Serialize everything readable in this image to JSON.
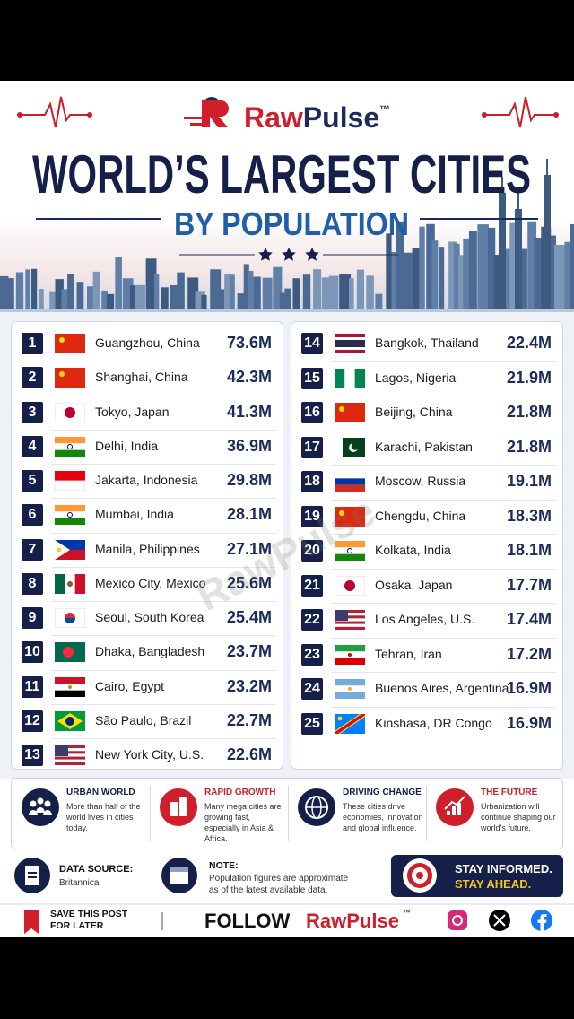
{
  "header": {
    "brand_first": "Raw",
    "brand_second": "Pulse",
    "trademark": "™",
    "title": "WORLD’S LARGEST CITIES",
    "subtitle": "BY POPULATION"
  },
  "watermark": "RawPulse",
  "table": {
    "rows": [
      [
        1,
        "Guangzhou, China",
        "73.6M"
      ],
      [
        2,
        "Shanghai, China",
        "42.3M"
      ],
      [
        3,
        "Tokyo, Japan",
        "41.3M"
      ],
      [
        4,
        "Delhi, India",
        "36.9M"
      ],
      [
        5,
        "Jakarta, Indonesia",
        "29.8M"
      ],
      [
        6,
        "Mumbai, India",
        "28.1M"
      ],
      [
        7,
        "Manila, Philippines",
        "27.1M"
      ],
      [
        8,
        "Mexico City, Mexico",
        "25.6M"
      ],
      [
        9,
        "Seoul, South Korea",
        "25.4M"
      ],
      [
        10,
        "Dhaka, Bangladesh",
        "23.7M"
      ],
      [
        11,
        "Cairo, Egypt",
        "23.2M"
      ],
      [
        12,
        "São Paulo, Brazil",
        "22.7M"
      ],
      [
        13,
        "New York City, U.S.",
        "22.6M"
      ],
      [
        14,
        "Bangkok, Thailand",
        "22.4M"
      ],
      [
        15,
        "Lagos, Nigeria",
        "21.9M"
      ],
      [
        16,
        "Beijing, China",
        "21.8M"
      ],
      [
        17,
        "Karachi, Pakistan",
        "21.8M"
      ],
      [
        18,
        "Moscow, Russia",
        "19.1M"
      ],
      [
        19,
        "Chengdu, China",
        "18.3M"
      ],
      [
        20,
        "Kolkata, India",
        "18.1M"
      ],
      [
        21,
        "Osaka, Japan",
        "17.7M"
      ],
      [
        22,
        "Los Angeles, U.S.",
        "17.4M"
      ],
      [
        23,
        "Tehran, Iran",
        "17.2M"
      ],
      [
        24,
        "Buenos Aires, Argentina",
        "16.9M"
      ],
      [
        25,
        "Kinshasa, DR Congo",
        "16.9M"
      ]
    ]
  },
  "facts": [
    {
      "title": "URBAN WORLD",
      "text": "More than half of the world lives in cities today."
    },
    {
      "title": "RAPID GROWTH",
      "text": "Many mega cities are growing fast, especially in Asia & Africa."
    },
    {
      "title": "DRIVING CHANGE",
      "text": "These cities drive economies, innovation and global influence."
    },
    {
      "title": "THE FUTURE",
      "text": "Urbanization will continue shaping our world’s future."
    }
  ],
  "source": {
    "label": "DATA SOURCE:",
    "value": "Britannica"
  },
  "note": {
    "label": "NOTE:",
    "text": "Population figures are approximate as of the latest available data."
  },
  "cta": {
    "line1": "STAY INFORMED.",
    "line2": "STAY AHEAD."
  },
  "footer": {
    "save": "SAVE THIS POST FOR LATER",
    "follow": "FOLLOW",
    "brand": "RawPulse",
    "trademark": "™"
  }
}
